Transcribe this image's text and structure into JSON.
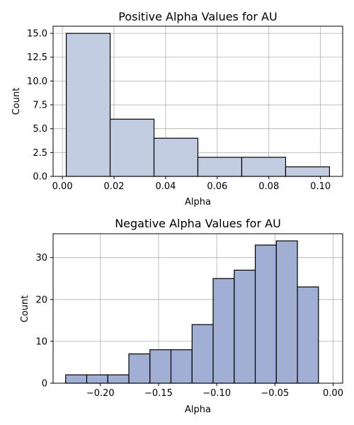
{
  "colors": {
    "positive_fill": "#c3cde2",
    "negative_fill": "#a2afd4",
    "bar_edge": "#000000",
    "grid": "#b0b0b0"
  },
  "chart_data": [
    {
      "type": "bar",
      "subtype": "histogram",
      "title": "Positive Alpha Values for AU",
      "xlabel": "Alpha",
      "ylabel": "Count",
      "grid": true,
      "bins": [
        {
          "start": 0.0015,
          "end": 0.0185,
          "count": 15
        },
        {
          "start": 0.0185,
          "end": 0.0355,
          "count": 6
        },
        {
          "start": 0.0355,
          "end": 0.0525,
          "count": 4
        },
        {
          "start": 0.0525,
          "end": 0.0695,
          "count": 2
        },
        {
          "start": 0.0695,
          "end": 0.0865,
          "count": 2
        },
        {
          "start": 0.0865,
          "end": 0.1035,
          "count": 1
        }
      ],
      "xlim": [
        -0.0036,
        0.1086
      ],
      "ylim": [
        0,
        15.75
      ],
      "xticks": [
        0.0,
        0.02,
        0.04,
        0.06,
        0.08,
        0.1
      ],
      "xtick_labels": [
        "0.00",
        "0.02",
        "0.04",
        "0.06",
        "0.08",
        "0.10"
      ],
      "yticks": [
        0,
        2.5,
        5,
        7.5,
        10,
        12.5,
        15
      ],
      "ytick_labels": [
        "0.0",
        "2.5",
        "5.0",
        "7.5",
        "10.0",
        "12.5",
        "15.0"
      ]
    },
    {
      "type": "bar",
      "subtype": "histogram",
      "title": "Negative Alpha Values for AU",
      "xlabel": "Alpha",
      "ylabel": "Count",
      "grid": true,
      "bins": [
        {
          "start": -0.2298,
          "end": -0.2117,
          "count": 2
        },
        {
          "start": -0.2117,
          "end": -0.1936,
          "count": 2
        },
        {
          "start": -0.1936,
          "end": -0.1755,
          "count": 2
        },
        {
          "start": -0.1755,
          "end": -0.1574,
          "count": 7
        },
        {
          "start": -0.1574,
          "end": -0.1393,
          "count": 8
        },
        {
          "start": -0.1393,
          "end": -0.1212,
          "count": 8
        },
        {
          "start": -0.1212,
          "end": -0.1031,
          "count": 14
        },
        {
          "start": -0.1031,
          "end": -0.085,
          "count": 25
        },
        {
          "start": -0.085,
          "end": -0.0669,
          "count": 27
        },
        {
          "start": -0.0669,
          "end": -0.0488,
          "count": 33
        },
        {
          "start": -0.0488,
          "end": -0.0307,
          "count": 34
        },
        {
          "start": -0.0307,
          "end": -0.0126,
          "count": 23
        }
      ],
      "xlim": [
        -0.2406,
        0.0082
      ],
      "ylim": [
        0,
        35.7
      ],
      "xticks": [
        -0.2,
        -0.15,
        -0.1,
        -0.05,
        0.0
      ],
      "xtick_labels": [
        "−0.20",
        "−0.15",
        "−0.10",
        "−0.05",
        "0.00"
      ],
      "yticks": [
        0,
        10,
        20,
        30
      ],
      "ytick_labels": [
        "0",
        "10",
        "20",
        "30"
      ]
    }
  ]
}
